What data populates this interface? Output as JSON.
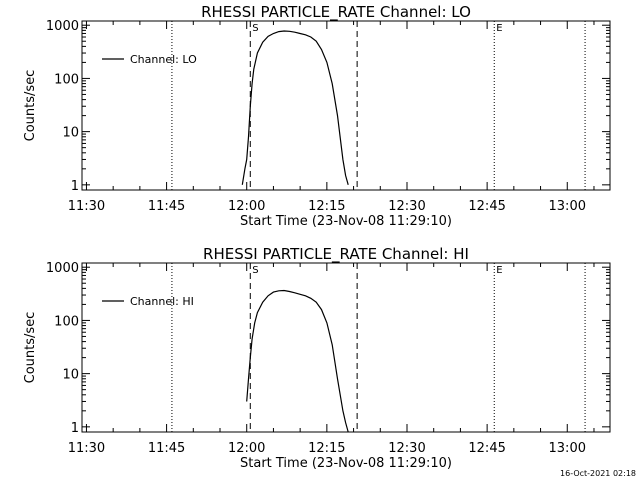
{
  "chart_data": [
    {
      "type": "line",
      "title": "RHESSI PARTICLE_RATE Channel: LO",
      "xlabel": "Start Time (23-Nov-08 11:29:10)",
      "ylabel": "Counts/sec",
      "yscale": "log",
      "ylim": [
        0.8,
        1200
      ],
      "xlim": [
        "11:29:10",
        "13:08:00"
      ],
      "x_ticks": [
        "11:30",
        "11:45",
        "12:00",
        "12:15",
        "12:30",
        "12:45",
        "13:00"
      ],
      "y_ticks": [
        "1",
        "10",
        "100",
        "1000"
      ],
      "legend": {
        "label": "Channel: LO",
        "position": "top-left"
      },
      "vertical_lines": [
        {
          "x": "11:46:00",
          "style": "dotted"
        },
        {
          "x": "12:00:40",
          "style": "dashed",
          "label": "S"
        },
        {
          "x": "12:20:40",
          "style": "dashed"
        },
        {
          "x": "12:46:20",
          "style": "dotted",
          "label": "E"
        },
        {
          "x": "13:03:20",
          "style": "dotted"
        }
      ],
      "series": [
        {
          "name": "Channel: LO",
          "x": [
            "11:59:10",
            "11:59:40",
            "12:00:00",
            "12:00:20",
            "12:00:40",
            "12:01:00",
            "12:01:20",
            "12:02:00",
            "12:03:00",
            "12:04:00",
            "12:05:00",
            "12:06:00",
            "12:07:00",
            "12:08:00",
            "12:09:00",
            "12:10:00",
            "12:11:00",
            "12:12:00",
            "12:13:00",
            "12:14:00",
            "12:15:00",
            "12:16:00",
            "12:17:00",
            "12:18:00",
            "12:18:30",
            "12:19:00"
          ],
          "y": [
            1,
            2,
            3,
            8,
            30,
            80,
            150,
            300,
            480,
            620,
            700,
            760,
            780,
            770,
            740,
            700,
            660,
            600,
            500,
            350,
            200,
            80,
            20,
            3,
            1.5,
            1
          ]
        }
      ]
    },
    {
      "type": "line",
      "title": "RHESSI PARTICLE_RATE Channel: HI",
      "xlabel": "Start Time (23-Nov-08 11:29:10)",
      "ylabel": "Counts/sec",
      "yscale": "log",
      "ylim": [
        0.8,
        1200
      ],
      "xlim": [
        "11:29:10",
        "13:08:00"
      ],
      "x_ticks": [
        "11:30",
        "11:45",
        "12:00",
        "12:15",
        "12:30",
        "12:45",
        "13:00"
      ],
      "y_ticks": [
        "1",
        "10",
        "100",
        "1000"
      ],
      "legend": {
        "label": "Channel: HI",
        "position": "top-left"
      },
      "vertical_lines": [
        {
          "x": "11:46:00",
          "style": "dotted"
        },
        {
          "x": "12:00:40",
          "style": "dashed",
          "label": "S"
        },
        {
          "x": "12:20:40",
          "style": "dashed"
        },
        {
          "x": "12:46:20",
          "style": "dotted",
          "label": "E"
        },
        {
          "x": "13:03:20",
          "style": "dotted"
        }
      ],
      "series": [
        {
          "name": "Channel: HI",
          "x": [
            "12:00:00",
            "12:00:20",
            "12:00:40",
            "12:01:00",
            "12:01:30",
            "12:02:00",
            "12:03:00",
            "12:04:00",
            "12:05:00",
            "12:06:00",
            "12:07:00",
            "12:08:00",
            "12:09:00",
            "12:10:00",
            "12:11:00",
            "12:12:00",
            "12:13:00",
            "12:14:00",
            "12:15:00",
            "12:16:00",
            "12:17:00",
            "12:18:00",
            "12:18:30",
            "12:19:00"
          ],
          "y": [
            3,
            8,
            20,
            45,
            90,
            140,
            220,
            290,
            340,
            360,
            365,
            350,
            330,
            310,
            290,
            260,
            220,
            160,
            90,
            35,
            8,
            2,
            1.2,
            0.8
          ]
        }
      ]
    }
  ],
  "timestamp": "16-Oct-2021 02:18"
}
